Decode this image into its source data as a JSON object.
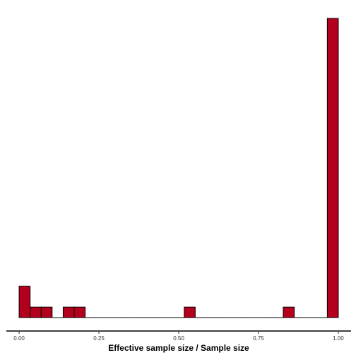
{
  "chart_data": {
    "type": "bar",
    "title": "",
    "xlabel": "Effective sample size / Sample size",
    "ylabel": "",
    "xlim": [
      -0.04,
      1.04
    ],
    "ylim": [
      0,
      1.0
    ],
    "bin_width": 0.0345,
    "ticks": [
      {
        "value": 0.0,
        "label": "0.00"
      },
      {
        "value": 0.25,
        "label": "0.25"
      },
      {
        "value": 0.5,
        "label": "0.50"
      },
      {
        "value": 0.75,
        "label": "0.75"
      },
      {
        "value": 1.0,
        "label": "1.00"
      }
    ],
    "bins": [
      {
        "x": 0.0172,
        "count": 0.105
      },
      {
        "x": 0.0517,
        "count": 0.035
      },
      {
        "x": 0.0862,
        "count": 0.035
      },
      {
        "x": 0.1207,
        "count": 0
      },
      {
        "x": 0.1552,
        "count": 0.035
      },
      {
        "x": 0.1897,
        "count": 0.035
      },
      {
        "x": 0.2241,
        "count": 0
      },
      {
        "x": 0.2586,
        "count": 0
      },
      {
        "x": 0.2931,
        "count": 0
      },
      {
        "x": 0.3276,
        "count": 0
      },
      {
        "x": 0.3621,
        "count": 0
      },
      {
        "x": 0.3966,
        "count": 0
      },
      {
        "x": 0.431,
        "count": 0
      },
      {
        "x": 0.4655,
        "count": 0
      },
      {
        "x": 0.5,
        "count": 0
      },
      {
        "x": 0.5345,
        "count": 0.035
      },
      {
        "x": 0.569,
        "count": 0
      },
      {
        "x": 0.6034,
        "count": 0
      },
      {
        "x": 0.6379,
        "count": 0
      },
      {
        "x": 0.6724,
        "count": 0
      },
      {
        "x": 0.7069,
        "count": 0
      },
      {
        "x": 0.7414,
        "count": 0
      },
      {
        "x": 0.7759,
        "count": 0
      },
      {
        "x": 0.8103,
        "count": 0
      },
      {
        "x": 0.8448,
        "count": 0.035
      },
      {
        "x": 0.8793,
        "count": 0
      },
      {
        "x": 0.9138,
        "count": 0
      },
      {
        "x": 0.9483,
        "count": 0
      },
      {
        "x": 0.9828,
        "count": 1.0
      }
    ],
    "fill_color": "#B2001D",
    "stroke_color": "#000000",
    "grid": false,
    "legend": "none"
  }
}
